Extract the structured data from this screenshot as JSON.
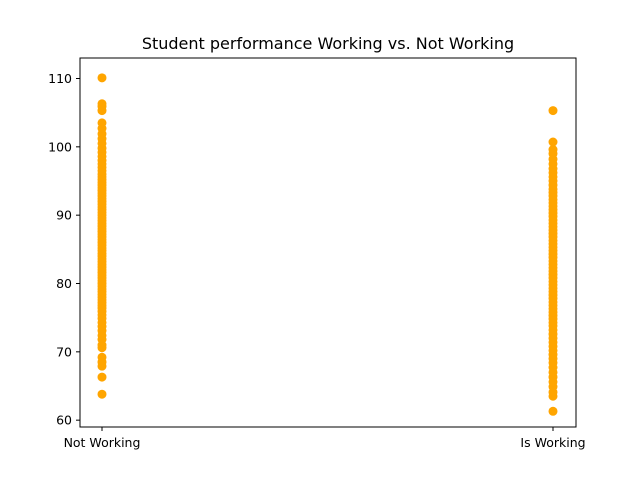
{
  "chart_data": {
    "type": "scatter",
    "title": "Student performance Working vs. Not Working",
    "xlabel": "",
    "ylabel": "",
    "categories": [
      "Not Working",
      "Is Working"
    ],
    "ylim": [
      59,
      113
    ],
    "yticks": [
      60,
      70,
      80,
      90,
      100,
      110
    ],
    "grid": false,
    "legend": "none",
    "marker_color": "#ffa500",
    "series": [
      {
        "x": "Not Working",
        "values": [
          63.8,
          66.3,
          67.9,
          68.5,
          69.2,
          70.6,
          71.0,
          71.8,
          72.4,
          73.1,
          73.7,
          74.3,
          74.9,
          75.4,
          75.9,
          76.4,
          76.8,
          77.2,
          77.6,
          78.0,
          78.4,
          78.8,
          79.2,
          79.6,
          80.0,
          80.4,
          80.8,
          81.2,
          81.6,
          82.0,
          82.4,
          82.8,
          83.2,
          83.6,
          84.0,
          84.4,
          84.8,
          85.2,
          85.6,
          86.0,
          86.4,
          86.8,
          87.2,
          87.6,
          88.0,
          88.4,
          88.8,
          89.2,
          89.6,
          90.0,
          90.4,
          90.8,
          91.2,
          91.6,
          92.0,
          92.4,
          92.8,
          93.2,
          93.6,
          94.0,
          94.4,
          94.8,
          95.2,
          95.6,
          96.0,
          96.5,
          97.0,
          97.5,
          98.0,
          98.6,
          99.2,
          99.8,
          100.5,
          101.2,
          101.9,
          102.7,
          103.5,
          105.3,
          105.9,
          106.3,
          110.1
        ]
      },
      {
        "x": "Is Working",
        "values": [
          61.3,
          63.5,
          64.1,
          64.9,
          65.6,
          66.3,
          67.0,
          67.7,
          68.4,
          69.0,
          69.6,
          70.2,
          70.8,
          71.4,
          72.0,
          72.6,
          73.2,
          73.8,
          74.3,
          74.8,
          75.3,
          75.8,
          76.3,
          76.8,
          77.3,
          77.8,
          78.3,
          78.8,
          79.3,
          79.8,
          80.3,
          80.8,
          81.3,
          81.8,
          82.3,
          82.8,
          83.3,
          83.8,
          84.3,
          84.8,
          85.3,
          85.8,
          86.3,
          86.8,
          87.3,
          87.8,
          88.3,
          88.8,
          89.3,
          89.8,
          90.3,
          90.8,
          91.3,
          91.8,
          92.3,
          92.8,
          93.3,
          93.8,
          94.4,
          95.0,
          95.6,
          96.2,
          96.8,
          97.5,
          98.2,
          99.0,
          99.6,
          100.7,
          105.3
        ]
      }
    ]
  }
}
